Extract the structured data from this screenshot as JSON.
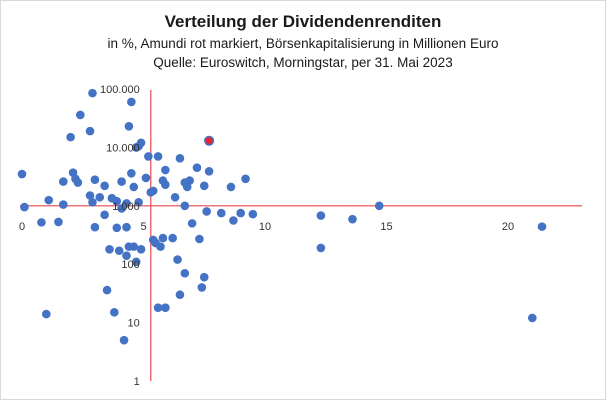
{
  "chart_data": {
    "type": "scatter",
    "title": "Verteilung der Dividendenrenditen",
    "subtitle_lines": [
      "in %, Amundi rot markiert, Börsenkapitalisierung in Millionen Euro",
      "Quelle: Euroswitch, Morningstar, per 31. Mai 2023"
    ],
    "xlabel": "",
    "ylabel": "",
    "x_scale": "linear",
    "y_scale": "log",
    "xlim": [
      0,
      23
    ],
    "ylim": [
      1,
      100000
    ],
    "x_ticks": [
      0,
      5,
      10,
      15,
      20
    ],
    "x_tick_labels": [
      "0",
      "5",
      "10",
      "15",
      "20"
    ],
    "y_ticks": [
      1,
      10,
      100,
      1000,
      10000,
      100000
    ],
    "y_tick_labels": [
      "1",
      "10",
      "100",
      "1.000",
      "10.000",
      "100.000"
    ],
    "grid": false,
    "legend": "none",
    "axis_color": "#e8474f",
    "point_color": "#4472c4",
    "highlight_color": "#e8262e",
    "series": [
      {
        "values": [
          {
            "x": 0.0,
            "y": 3500
          },
          {
            "x": 0.1,
            "y": 950
          },
          {
            "x": 0.8,
            "y": 520
          },
          {
            "x": 1.1,
            "y": 1250
          },
          {
            "x": 1.0,
            "y": 14
          },
          {
            "x": 1.5,
            "y": 530
          },
          {
            "x": 1.7,
            "y": 2600
          },
          {
            "x": 1.7,
            "y": 1050
          },
          {
            "x": 2.0,
            "y": 15000
          },
          {
            "x": 2.1,
            "y": 3700
          },
          {
            "x": 2.2,
            "y": 2900
          },
          {
            "x": 2.3,
            "y": 2500
          },
          {
            "x": 2.4,
            "y": 36000
          },
          {
            "x": 2.9,
            "y": 85000
          },
          {
            "x": 2.8,
            "y": 19000
          },
          {
            "x": 2.8,
            "y": 1500
          },
          {
            "x": 2.9,
            "y": 1150
          },
          {
            "x": 3.0,
            "y": 430
          },
          {
            "x": 3.0,
            "y": 2800
          },
          {
            "x": 3.2,
            "y": 1400
          },
          {
            "x": 3.4,
            "y": 2200
          },
          {
            "x": 3.4,
            "y": 700
          },
          {
            "x": 3.5,
            "y": 36
          },
          {
            "x": 3.6,
            "y": 180
          },
          {
            "x": 3.7,
            "y": 1350
          },
          {
            "x": 3.8,
            "y": 15
          },
          {
            "x": 3.9,
            "y": 1200
          },
          {
            "x": 3.9,
            "y": 420
          },
          {
            "x": 4.0,
            "y": 170
          },
          {
            "x": 4.1,
            "y": 2600
          },
          {
            "x": 4.1,
            "y": 900
          },
          {
            "x": 4.2,
            "y": 5
          },
          {
            "x": 4.3,
            "y": 140
          },
          {
            "x": 4.3,
            "y": 430
          },
          {
            "x": 4.3,
            "y": 1100
          },
          {
            "x": 4.4,
            "y": 200
          },
          {
            "x": 4.4,
            "y": 23000
          },
          {
            "x": 4.5,
            "y": 60000
          },
          {
            "x": 4.5,
            "y": 3600
          },
          {
            "x": 4.6,
            "y": 2100
          },
          {
            "x": 4.6,
            "y": 200
          },
          {
            "x": 4.7,
            "y": 10000
          },
          {
            "x": 4.7,
            "y": 110
          },
          {
            "x": 4.8,
            "y": 10500
          },
          {
            "x": 4.8,
            "y": 1150
          },
          {
            "x": 4.9,
            "y": 12000
          },
          {
            "x": 4.9,
            "y": 180
          },
          {
            "x": 5.1,
            "y": 3000
          },
          {
            "x": 5.2,
            "y": 7000
          },
          {
            "x": 5.3,
            "y": 1700
          },
          {
            "x": 5.4,
            "y": 260
          },
          {
            "x": 5.4,
            "y": 1800
          },
          {
            "x": 5.5,
            "y": 230
          },
          {
            "x": 5.6,
            "y": 18
          },
          {
            "x": 5.6,
            "y": 7000
          },
          {
            "x": 5.7,
            "y": 200
          },
          {
            "x": 5.8,
            "y": 2700
          },
          {
            "x": 5.8,
            "y": 280
          },
          {
            "x": 5.9,
            "y": 4100
          },
          {
            "x": 5.9,
            "y": 2300
          },
          {
            "x": 5.9,
            "y": 18
          },
          {
            "x": 6.2,
            "y": 280
          },
          {
            "x": 6.3,
            "y": 1400
          },
          {
            "x": 6.4,
            "y": 120
          },
          {
            "x": 6.5,
            "y": 6500
          },
          {
            "x": 6.5,
            "y": 30
          },
          {
            "x": 6.7,
            "y": 2500
          },
          {
            "x": 6.7,
            "y": 1000
          },
          {
            "x": 6.7,
            "y": 70
          },
          {
            "x": 6.8,
            "y": 2100
          },
          {
            "x": 6.9,
            "y": 2700
          },
          {
            "x": 7.0,
            "y": 500
          },
          {
            "x": 7.2,
            "y": 4500
          },
          {
            "x": 7.3,
            "y": 270
          },
          {
            "x": 7.4,
            "y": 40
          },
          {
            "x": 7.5,
            "y": 2200
          },
          {
            "x": 7.5,
            "y": 60
          },
          {
            "x": 7.6,
            "y": 800
          },
          {
            "x": 7.7,
            "y": 3900
          },
          {
            "x": 7.7,
            "y": 13000,
            "highlight": true
          },
          {
            "x": 8.2,
            "y": 750
          },
          {
            "x": 8.6,
            "y": 2100
          },
          {
            "x": 8.7,
            "y": 560
          },
          {
            "x": 9.0,
            "y": 750
          },
          {
            "x": 9.2,
            "y": 2900
          },
          {
            "x": 9.5,
            "y": 720
          },
          {
            "x": 12.3,
            "y": 680
          },
          {
            "x": 12.3,
            "y": 190
          },
          {
            "x": 13.6,
            "y": 590
          },
          {
            "x": 14.7,
            "y": 1000
          },
          {
            "x": 21.0,
            "y": 12
          },
          {
            "x": 21.4,
            "y": 440
          }
        ]
      }
    ]
  }
}
